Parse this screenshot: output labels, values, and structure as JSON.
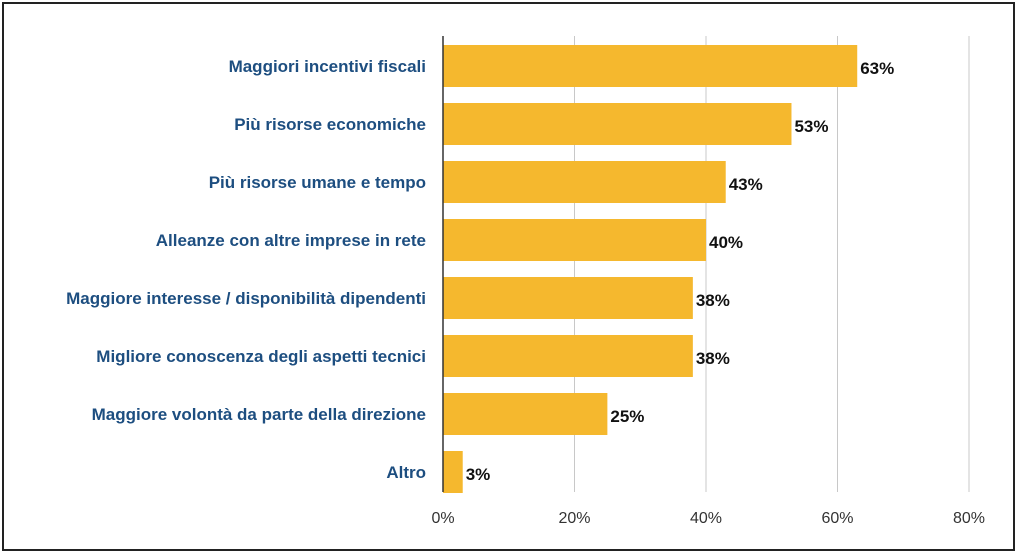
{
  "chart_data": {
    "type": "bar",
    "orientation": "horizontal",
    "categories": [
      "Maggiori incentivi fiscali",
      "Più risorse economiche",
      "Più risorse umane e tempo",
      "Alleanze con altre imprese in rete",
      "Maggiore interesse / disponibilità dipendenti",
      "Migliore conoscenza degli aspetti tecnici",
      "Maggiore volontà da parte della direzione",
      "Altro"
    ],
    "values": [
      63,
      53,
      43,
      40,
      38,
      38,
      25,
      3
    ],
    "value_labels": [
      "63%",
      "53%",
      "43%",
      "40%",
      "38%",
      "38%",
      "25%",
      "3%"
    ],
    "xlim": [
      0,
      80
    ],
    "xticks": [
      "0%",
      "20%",
      "40%",
      "60%",
      "80%"
    ],
    "grid": true,
    "title": "",
    "xlabel": "",
    "ylabel": ""
  },
  "colors": {
    "bar": "#F5B82E",
    "category_text": "#1D4E80",
    "value_text": "#111111",
    "tick_text": "#333333",
    "grid": "#C8C8C8",
    "axis": "#333333"
  }
}
